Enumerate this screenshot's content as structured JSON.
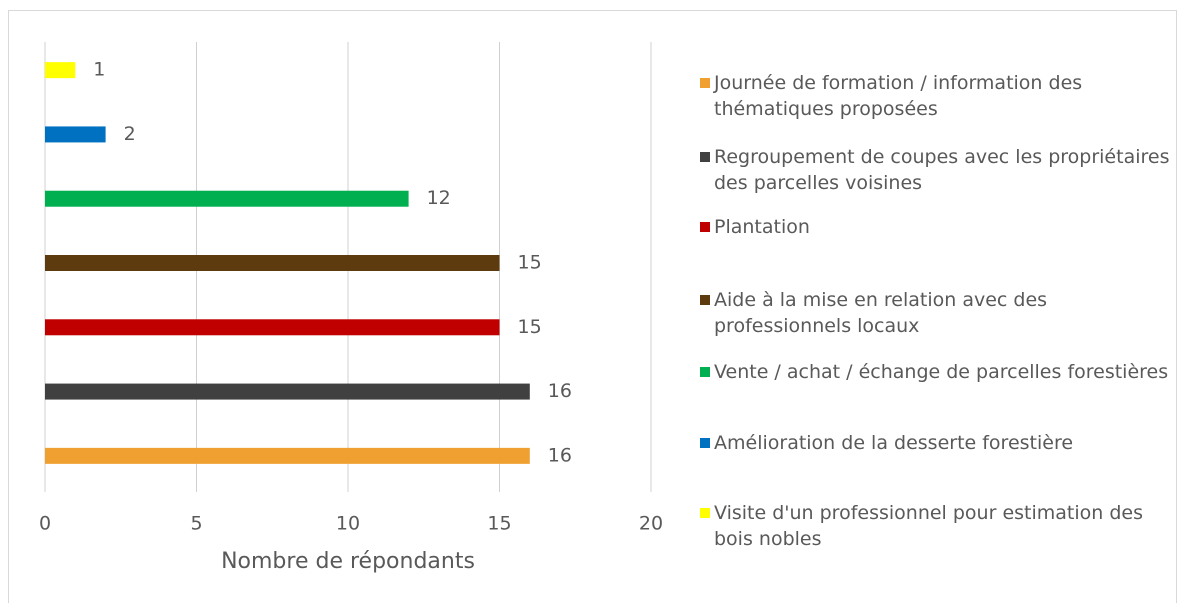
{
  "chart_data": {
    "type": "bar",
    "orientation": "horizontal",
    "x_label": "Nombre de répondants",
    "categories": [
      "Journée de formation / information des thématiques proposées",
      "Regroupement de coupes avec les propriétaires des parcelles voisines",
      "Plantation",
      "Aide à la mise en relation avec des professionnels locaux",
      "Vente / achat / échange de parcelles forestières",
      "Amélioration de la desserte forestière",
      "Visite d'un professionnel pour estimation des bois nobles"
    ],
    "values": [
      16,
      16,
      15,
      15,
      12,
      2,
      1
    ],
    "colors": [
      "#f0a030",
      "#404040",
      "#c00000",
      "#5e3a0f",
      "#00b050",
      "#0070c0",
      "#ffff00"
    ],
    "xlim": [
      0,
      20
    ],
    "xticks": [
      0,
      5,
      10,
      15,
      20
    ],
    "grid": true,
    "legend": "right"
  }
}
